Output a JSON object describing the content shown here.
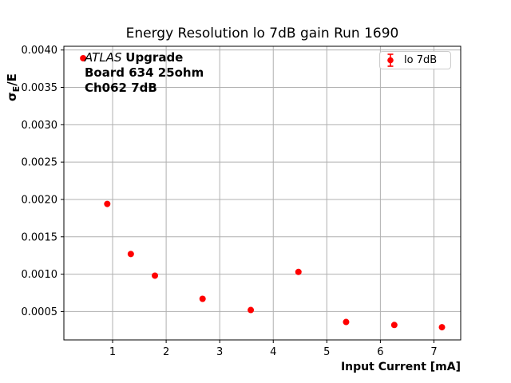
{
  "figure": {
    "background": "#ffffff"
  },
  "chart_data": {
    "type": "scatter",
    "title": "Energy Resolution lo 7dB gain Run 1690",
    "xlabel": "Input Current [mA]",
    "ylabel": "σE/E",
    "ylabel_parts": {
      "sigma": "σ",
      "subscript": "E",
      "rest": "/E"
    },
    "xlim": [
      0.09,
      7.5
    ],
    "ylim": [
      0.00012,
      0.00405
    ],
    "xticks": [
      1,
      2,
      3,
      4,
      5,
      6,
      7
    ],
    "yticks": [
      0.0005,
      0.001,
      0.0015,
      0.002,
      0.0025,
      0.003,
      0.0035,
      0.004
    ],
    "grid": true,
    "grid_color": "#b0b0b0",
    "spine_color": "#000000",
    "tick_label_color": "#000000",
    "series": [
      {
        "name": "lo 7dB",
        "color": "#ff0000",
        "marker": "circle-errorbar",
        "marker_radius": 4,
        "x": [
          0.45,
          0.9,
          1.34,
          1.79,
          2.68,
          3.58,
          4.47,
          5.36,
          6.26,
          7.15
        ],
        "y": [
          0.00389,
          0.00194,
          0.00127,
          0.00098,
          0.00067,
          0.00052,
          0.00103,
          0.00036,
          0.00032,
          0.00029
        ]
      }
    ],
    "legend": {
      "position": "upper right",
      "entries": [
        {
          "label": "lo 7dB",
          "color": "#ff0000",
          "marker": "errorbar-circle"
        }
      ]
    },
    "annotation": {
      "line1_italic": "ATLAS",
      "line1_bold": "Upgrade",
      "line2": "Board 634 25ohm",
      "line3": "Ch062 7dB"
    }
  }
}
